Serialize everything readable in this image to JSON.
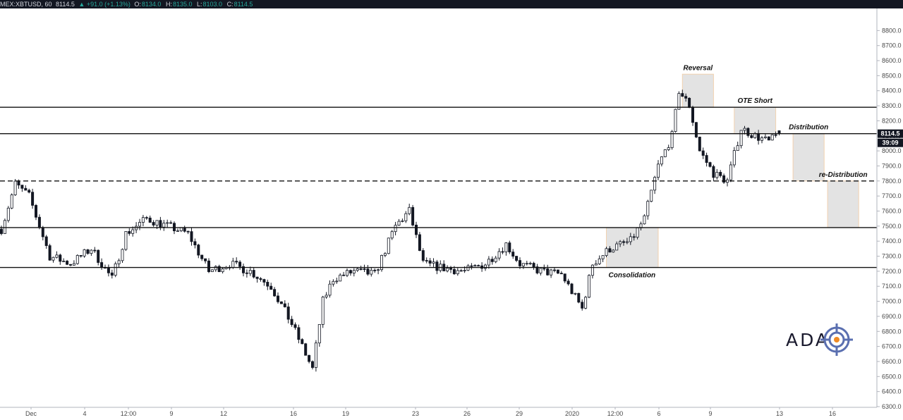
{
  "header": {
    "symbol": "MEX:XBTUSD, 60",
    "last": "8114.5",
    "change": "▲ +91.0 (+1.13%)",
    "o_label": "O:",
    "o_value": "8134.0",
    "h_label": "H:",
    "h_value": "8135.0",
    "l_label": "L:",
    "l_value": "8103.0",
    "c_label": "C:",
    "c_value": "8114.5"
  },
  "logo": {
    "text": "ADA",
    "icon": "crosshair-target-icon"
  },
  "colors": {
    "candle": "#131722",
    "box_fill": "#e3e3e3",
    "box_border": "#f2d2b0",
    "line": "#111111",
    "tag_bg": "#131722",
    "tag_text": "#ffffff"
  },
  "chart_data": {
    "type": "candlestick",
    "timeframe": "60",
    "ylim": [
      6300,
      8900
    ],
    "y_ticks": [
      "6300.0",
      "6400.0",
      "6500.0",
      "6600.0",
      "6700.0",
      "6800.0",
      "6900.0",
      "7000.0",
      "7100.0",
      "7200.0",
      "7300.0",
      "7400.0",
      "7500.0",
      "7600.0",
      "7700.0",
      "7800.0",
      "7900.0",
      "8000.0",
      "8100.0",
      "8200.0",
      "8300.0",
      "8400.0",
      "8500.0",
      "8600.0",
      "8700.0",
      "8800.0"
    ],
    "x_ticks": [
      "Dec",
      "4",
      "12:00",
      "9",
      "12",
      "16",
      "19",
      "23",
      "26",
      "29",
      "2020",
      "12:00",
      "6",
      "9",
      "13",
      "16"
    ],
    "price_tag": "8114.5",
    "countdown": "39:09",
    "price_path": [
      {
        "i": 0,
        "p": 7480
      },
      {
        "i": 4,
        "p": 7780
      },
      {
        "i": 8,
        "p": 7700
      },
      {
        "i": 14,
        "p": 7300
      },
      {
        "i": 20,
        "p": 7250
      },
      {
        "i": 26,
        "p": 7350
      },
      {
        "i": 32,
        "p": 7150
      },
      {
        "i": 36,
        "p": 7450
      },
      {
        "i": 42,
        "p": 7550
      },
      {
        "i": 48,
        "p": 7500
      },
      {
        "i": 54,
        "p": 7450
      },
      {
        "i": 60,
        "p": 7200
      },
      {
        "i": 66,
        "p": 7250
      },
      {
        "i": 72,
        "p": 7200
      },
      {
        "i": 78,
        "p": 7100
      },
      {
        "i": 84,
        "p": 6850
      },
      {
        "i": 90,
        "p": 6550
      },
      {
        "i": 93,
        "p": 7000
      },
      {
        "i": 96,
        "p": 7150
      },
      {
        "i": 102,
        "p": 7200
      },
      {
        "i": 108,
        "p": 7180
      },
      {
        "i": 114,
        "p": 7500
      },
      {
        "i": 118,
        "p": 7600
      },
      {
        "i": 122,
        "p": 7250
      },
      {
        "i": 128,
        "p": 7220
      },
      {
        "i": 134,
        "p": 7200
      },
      {
        "i": 140,
        "p": 7250
      },
      {
        "i": 146,
        "p": 7380
      },
      {
        "i": 150,
        "p": 7250
      },
      {
        "i": 156,
        "p": 7200
      },
      {
        "i": 162,
        "p": 7180
      },
      {
        "i": 168,
        "p": 6950
      },
      {
        "i": 171,
        "p": 7250
      },
      {
        "i": 176,
        "p": 7350
      },
      {
        "i": 182,
        "p": 7400
      },
      {
        "i": 186,
        "p": 7550
      },
      {
        "i": 190,
        "p": 7900
      },
      {
        "i": 194,
        "p": 8100
      },
      {
        "i": 196,
        "p": 8400
      },
      {
        "i": 199,
        "p": 8300
      },
      {
        "i": 202,
        "p": 8000
      },
      {
        "i": 206,
        "p": 7850
      },
      {
        "i": 210,
        "p": 7800
      },
      {
        "i": 214,
        "p": 8150
      },
      {
        "i": 218,
        "p": 8100
      },
      {
        "i": 222,
        "p": 8060
      },
      {
        "i": 225,
        "p": 8114.5
      }
    ],
    "levels": [
      {
        "value": 8290,
        "style": "solid"
      },
      {
        "value": 8114.5,
        "style": "solid"
      },
      {
        "value": 7800,
        "style": "dashed"
      },
      {
        "value": 7490,
        "style": "solid"
      },
      {
        "value": 7225,
        "style": "solid"
      }
    ],
    "zones": [
      {
        "label": "Reversal",
        "from_index": 197,
        "to_index": 206,
        "low": 8290,
        "high": 8510
      },
      {
        "label": "OTE Short",
        "from_index": 212,
        "to_index": 224,
        "low": 8114.5,
        "high": 8290
      },
      {
        "label": "Distribution",
        "from_index": 229,
        "to_index": 238,
        "low": 7800,
        "high": 8114.5
      },
      {
        "label": "re-Distribution",
        "from_index": 239,
        "to_index": 248,
        "low": 7490,
        "high": 7800
      },
      {
        "label": "Consolidation",
        "from_index": 175,
        "to_index": 190,
        "low": 7225,
        "high": 7490
      }
    ]
  }
}
